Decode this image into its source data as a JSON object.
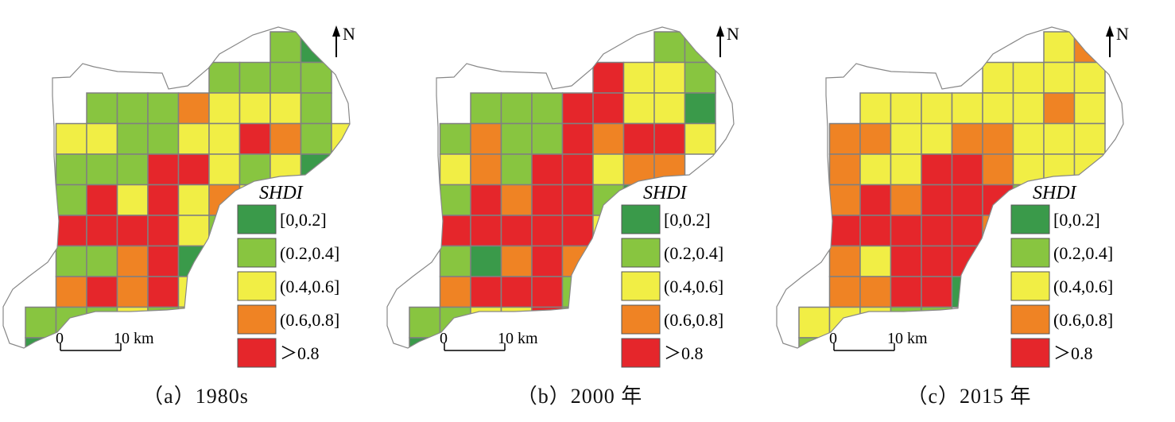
{
  "colors": {
    "class0": "#3a9a4a",
    "class1": "#88c540",
    "class2": "#f1ee45",
    "class3": "#ef8324",
    "class4": "#e5262b",
    "grid_line": "#808080"
  },
  "legend": {
    "title": "SHDI",
    "items": [
      {
        "label": "[0,0.2]",
        "color": "#3a9a4a"
      },
      {
        "label": "(0.2,0.4]",
        "color": "#88c540"
      },
      {
        "label": "(0.4,0.6]",
        "color": "#f1ee45"
      },
      {
        "label": "(0.6,0.8]",
        "color": "#ef8324"
      },
      {
        "label": "＞0.8",
        "color": "#e5262b"
      }
    ]
  },
  "north_arrow": {
    "label": "N"
  },
  "scale_bar": {
    "start_label": "0",
    "end_label": "10 km"
  },
  "panels": [
    {
      "caption": "（a）1980s",
      "grid": [
        "........BA......",
        "......BBBB......",
        "..BBBDCCCB......",
        ".CCBBCCEDBC.....",
        ".BBBEECBCAA.....",
        ".BECECDCAA......",
        ".EEEECBB........",
        ".BBDEAB.........",
        ".DEDEC..........",
        "BBBCBC..........",
        "AABBC...........",
        "BB.............."
      ]
    },
    {
      "caption": "（b）2000 年",
      "grid": [
        "........BB......",
        "......ECCB......",
        "..BBBEECCA......",
        ".BDBBEDEEC.....",
        ".CDBEECDD.......",
        ".BEDEEBAA.......",
        ".EEEEEC.........",
        ".BADEDB.........",
        ".DEEEB..........",
        "BBCCEB..........",
        "ABBBB...........",
        "BB.............."
      ]
    },
    {
      "caption": "（c）2015 年",
      "grid": [
        "........CD......",
        "......CCCC......",
        "..CCCCCCDC......",
        ".DDCCDDCCC......",
        ".DCCEEDCCC......",
        ".DEDEEEBAA......",
        ".EEEEEDB........",
        ".DCEEEB.........",
        ".DDEEA..........",
        "CCCBB...........",
        "BCCC............",
        "CC.............."
      ]
    }
  ]
}
